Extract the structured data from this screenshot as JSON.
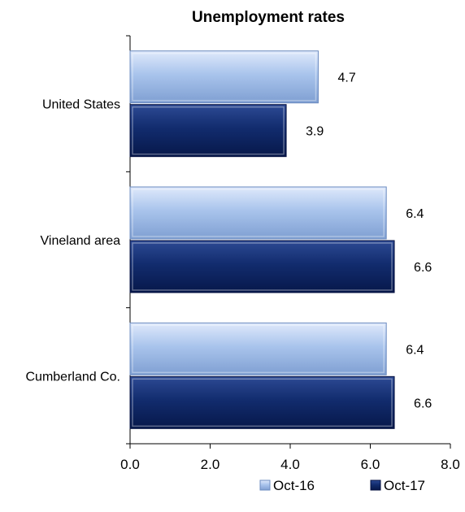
{
  "chart_data": {
    "type": "bar",
    "orientation": "horizontal",
    "title": "Unemployment rates",
    "xlabel": "",
    "ylabel": "",
    "categories": [
      "United States",
      "Vineland area",
      "Cumberland Co."
    ],
    "series": [
      {
        "name": "Oct-16",
        "color": "#a9c4ec",
        "values": [
          4.7,
          6.4,
          6.4
        ]
      },
      {
        "name": "Oct-17",
        "color": "#102a6b",
        "values": [
          3.9,
          6.6,
          6.6
        ]
      }
    ],
    "xlim": [
      0,
      8
    ],
    "xticks": [
      "0.0",
      "2.0",
      "4.0",
      "6.0",
      "8.0"
    ],
    "data_labels": [
      [
        "4.7",
        "6.4",
        "6.4"
      ],
      [
        "3.9",
        "6.6",
        "6.6"
      ]
    ],
    "legend": {
      "position": "bottom-right",
      "items": [
        "Oct-16",
        "Oct-17"
      ]
    },
    "grid": false
  }
}
